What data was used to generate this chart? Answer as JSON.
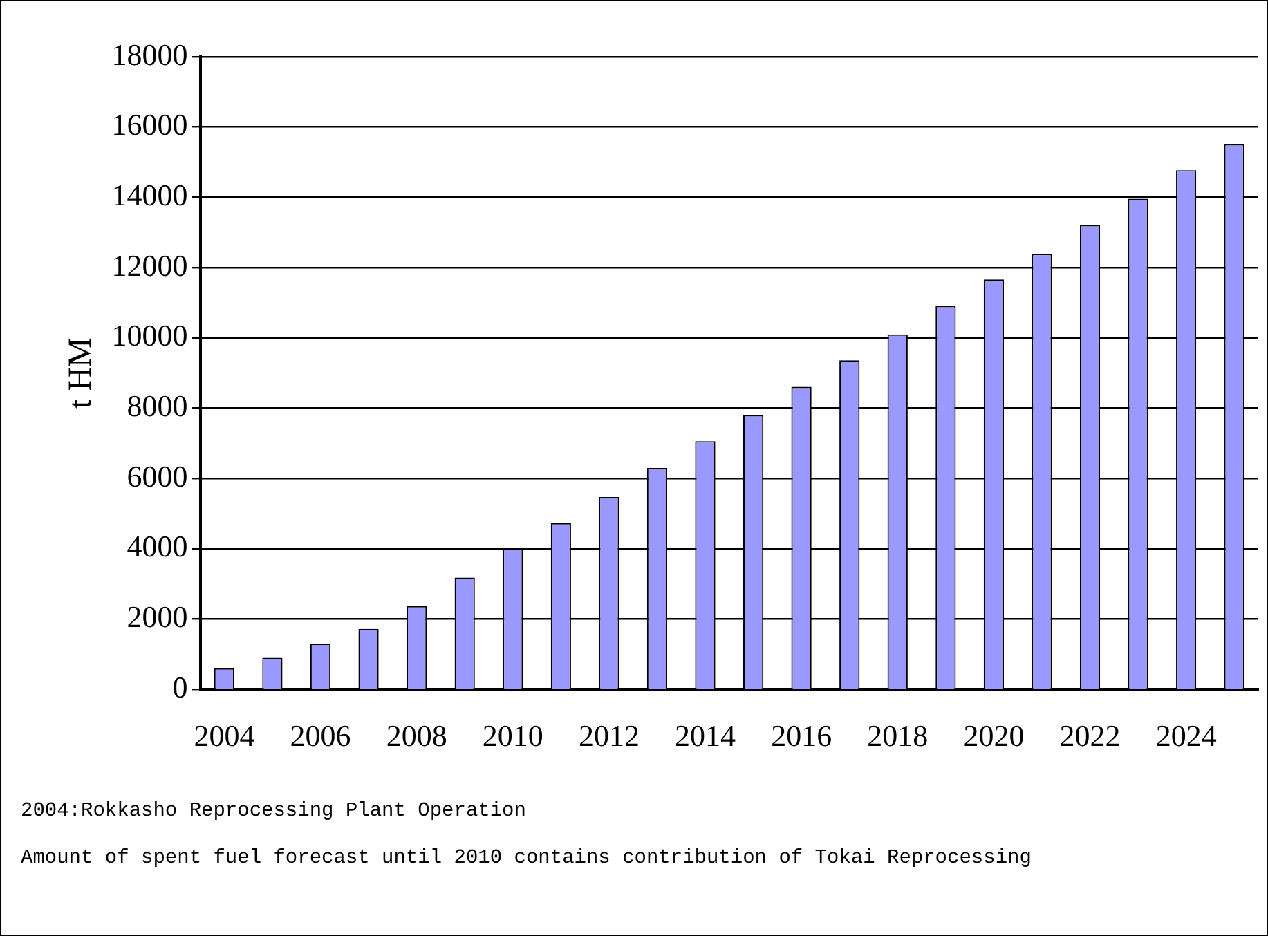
{
  "chart_data": {
    "type": "bar",
    "ylabel": "t HM",
    "categories": [
      "2004",
      null,
      "2006",
      null,
      "2008",
      null,
      "2010",
      null,
      "2012",
      null,
      "2014",
      null,
      "2016",
      null,
      "2018",
      null,
      "2020",
      null,
      "2022",
      null,
      "2024",
      null
    ],
    "values": [
      600,
      900,
      1300,
      1720,
      2370,
      3180,
      4000,
      4730,
      5470,
      6300,
      7060,
      7800,
      8610,
      9360,
      10100,
      10910,
      11660,
      12390,
      13210,
      13960,
      14770,
      15510
    ],
    "color": "#9999ff",
    "ylim": [
      0,
      18000
    ],
    "yticks": [
      0,
      2000,
      4000,
      6000,
      8000,
      10000,
      12000,
      14000,
      16000,
      18000
    ],
    "grid": "y",
    "legend": false,
    "annotations": [
      "2004:Rokkasho Reprocessing Plant Operation",
      "Amount of spent fuel forecast until 2010 contains contribution of Tokai Reprocessing"
    ]
  }
}
